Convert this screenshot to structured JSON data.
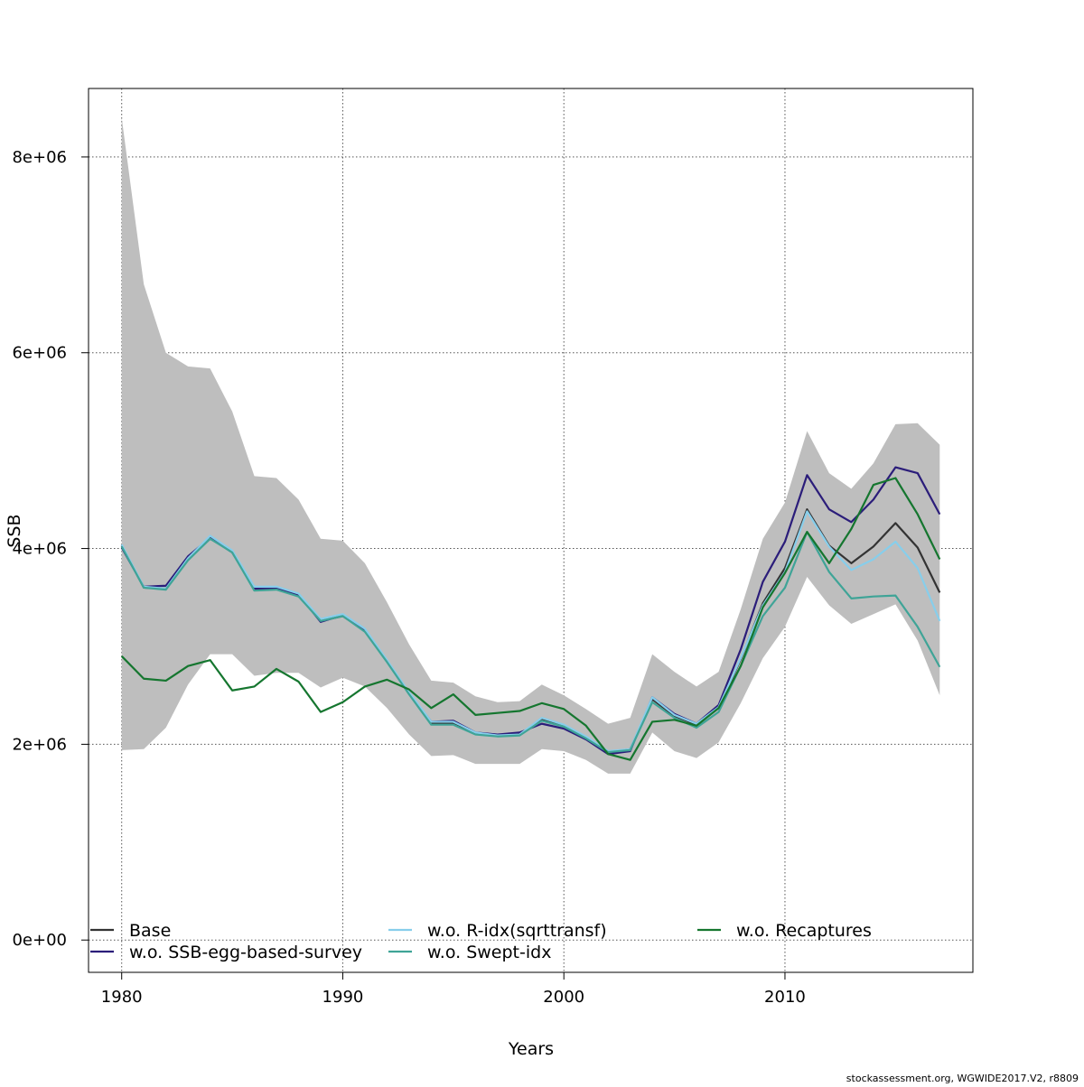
{
  "chart_data": {
    "type": "line",
    "xlabel": "Years",
    "ylabel": "SSB",
    "footer": "stockassessment.org, WGWIDE2017.V2, r8809",
    "xlim": [
      1978.5,
      2018.5
    ],
    "ylim": [
      -330000,
      8700000
    ],
    "xticks": [
      1980,
      1990,
      2000,
      2010
    ],
    "yticks": [
      0,
      2000000,
      4000000,
      6000000,
      8000000
    ],
    "ytick_labels": [
      "0e+00",
      "2e+06",
      "4e+06",
      "6e+06",
      "8e+06"
    ],
    "grid": true,
    "legend_position": "bottom",
    "years": [
      1980,
      1981,
      1982,
      1983,
      1984,
      1985,
      1986,
      1987,
      1988,
      1989,
      1990,
      1991,
      1992,
      1993,
      1994,
      1995,
      1996,
      1997,
      1998,
      1999,
      2000,
      2001,
      2002,
      2003,
      2004,
      2005,
      2006,
      2007,
      2008,
      2009,
      2010,
      2011,
      2012,
      2013,
      2014,
      2015,
      2016,
      2017
    ],
    "band": {
      "color": "#bebebe",
      "upper": [
        8400000,
        6700000,
        6000000,
        5860000,
        5840000,
        5400000,
        4740000,
        4720000,
        4500000,
        4100000,
        4080000,
        3850000,
        3450000,
        3020000,
        2650000,
        2630000,
        2490000,
        2430000,
        2440000,
        2610000,
        2500000,
        2360000,
        2210000,
        2270000,
        2920000,
        2740000,
        2590000,
        2740000,
        3380000,
        4100000,
        4470000,
        5200000,
        4770000,
        4610000,
        4870000,
        5270000,
        5280000,
        5060000
      ],
      "lower": [
        1940000,
        1950000,
        2170000,
        2610000,
        2920000,
        2920000,
        2700000,
        2730000,
        2730000,
        2580000,
        2680000,
        2590000,
        2370000,
        2100000,
        1880000,
        1890000,
        1800000,
        1800000,
        1800000,
        1950000,
        1930000,
        1840000,
        1700000,
        1700000,
        2120000,
        1930000,
        1860000,
        2020000,
        2420000,
        2880000,
        3200000,
        3710000,
        3420000,
        3230000,
        3330000,
        3430000,
        3060000,
        2500000
      ]
    },
    "series": [
      {
        "name": "Base",
        "color": "#333333",
        "values": [
          4030000,
          3600000,
          3590000,
          3890000,
          4100000,
          3970000,
          3580000,
          3590000,
          3520000,
          3260000,
          3310000,
          3160000,
          2850000,
          2520000,
          2210000,
          2210000,
          2110000,
          2090000,
          2100000,
          2250000,
          2190000,
          2070000,
          1920000,
          1950000,
          2460000,
          2290000,
          2200000,
          2370000,
          2870000,
          3440000,
          3800000,
          4400000,
          4030000,
          3850000,
          4020000,
          4260000,
          4010000,
          3550000
        ]
      },
      {
        "name": "w.o. SSB-egg-based-survey",
        "color": "#2b1d7a",
        "values": [
          4010000,
          3610000,
          3620000,
          3920000,
          4110000,
          3960000,
          3590000,
          3600000,
          3530000,
          3250000,
          3320000,
          3170000,
          2850000,
          2520000,
          2230000,
          2240000,
          2120000,
          2100000,
          2120000,
          2210000,
          2160000,
          2050000,
          1900000,
          1930000,
          2480000,
          2310000,
          2210000,
          2400000,
          2970000,
          3660000,
          4070000,
          4750000,
          4400000,
          4270000,
          4500000,
          4830000,
          4770000,
          4350000
        ]
      },
      {
        "name": "w.o. R-idx(sqrttransf)",
        "color": "#87ceeb",
        "values": [
          4040000,
          3610000,
          3590000,
          3900000,
          4130000,
          3980000,
          3610000,
          3610000,
          3540000,
          3280000,
          3330000,
          3180000,
          2860000,
          2530000,
          2230000,
          2230000,
          2120000,
          2090000,
          2100000,
          2270000,
          2200000,
          2080000,
          1930000,
          1950000,
          2480000,
          2300000,
          2210000,
          2380000,
          2880000,
          3420000,
          3760000,
          4380000,
          4020000,
          3780000,
          3890000,
          4070000,
          3800000,
          3260000
        ]
      },
      {
        "name": "w.o. Swept-idx",
        "color": "#3fa497",
        "values": [
          4020000,
          3600000,
          3580000,
          3880000,
          4100000,
          3960000,
          3570000,
          3580000,
          3510000,
          3260000,
          3310000,
          3150000,
          2840000,
          2510000,
          2200000,
          2200000,
          2100000,
          2080000,
          2090000,
          2240000,
          2180000,
          2060000,
          1920000,
          1940000,
          2430000,
          2270000,
          2170000,
          2330000,
          2800000,
          3310000,
          3600000,
          4170000,
          3760000,
          3490000,
          3510000,
          3520000,
          3200000,
          2790000
        ]
      },
      {
        "name": "w.o. Recaptures",
        "color": "#15762f",
        "values": [
          2900000,
          2670000,
          2650000,
          2800000,
          2860000,
          2550000,
          2590000,
          2770000,
          2640000,
          2330000,
          2430000,
          2590000,
          2660000,
          2560000,
          2370000,
          2510000,
          2300000,
          2320000,
          2340000,
          2420000,
          2360000,
          2190000,
          1900000,
          1840000,
          2230000,
          2250000,
          2190000,
          2370000,
          2800000,
          3400000,
          3750000,
          4170000,
          3850000,
          4200000,
          4650000,
          4720000,
          4350000,
          3890000
        ]
      }
    ]
  }
}
